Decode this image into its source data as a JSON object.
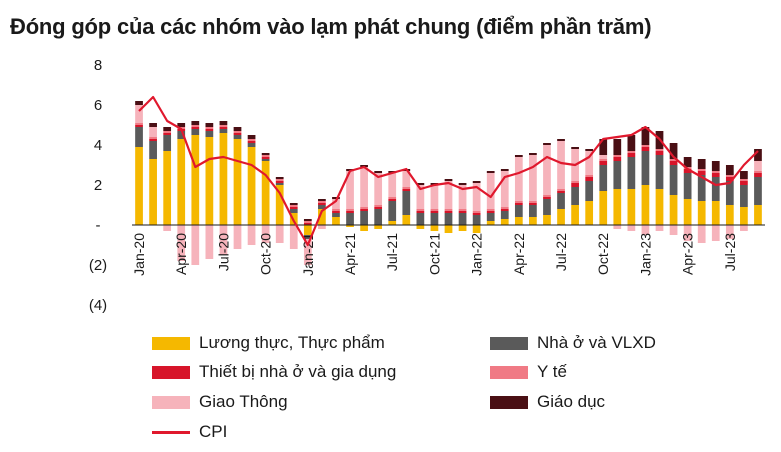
{
  "title": "Đóng góp của các nhóm vào lạm phát chung (điểm phần trăm)",
  "chart_data": {
    "type": "bar",
    "stacked": true,
    "overlay_line": "CPI",
    "categories": [
      "Jan-20",
      "Feb-20",
      "Mar-20",
      "Apr-20",
      "May-20",
      "Jun-20",
      "Jul-20",
      "Aug-20",
      "Sep-20",
      "Oct-20",
      "Nov-20",
      "Dec-20",
      "Jan-21",
      "Feb-21",
      "Mar-21",
      "Apr-21",
      "May-21",
      "Jun-21",
      "Jul-21",
      "Aug-21",
      "Sep-21",
      "Oct-21",
      "Nov-21",
      "Dec-21",
      "Jan-22",
      "Feb-22",
      "Mar-22",
      "Apr-22",
      "May-22",
      "Jun-22",
      "Jul-22",
      "Aug-22",
      "Sep-22",
      "Oct-22",
      "Nov-22",
      "Dec-22",
      "Jan-23",
      "Feb-23",
      "Mar-23",
      "Apr-23",
      "May-23",
      "Jun-23",
      "Jul-23",
      "Aug-23",
      "Sep-23"
    ],
    "tick_labels": [
      "Jan-20",
      "Apr-20",
      "Jul-20",
      "Oct-20",
      "Jan-21",
      "Apr-21",
      "Jul-21",
      "Oct-21",
      "Jan-22",
      "Apr-22",
      "Jul-22",
      "Oct-22",
      "Jan-23",
      "Apr-23",
      "Jul-23"
    ],
    "y_tick_labels": [
      "(4)",
      "(2)",
      "-",
      "2",
      "4",
      "6",
      "8"
    ],
    "ylim": [
      -4,
      8
    ],
    "y_ticks": [
      -4,
      -2,
      0,
      2,
      4,
      6,
      8
    ],
    "series": [
      {
        "name": "Lương thực, Thực phẩm",
        "color": "#f5b800",
        "values": [
          3.9,
          3.3,
          3.7,
          4.3,
          4.5,
          4.4,
          4.6,
          4.3,
          3.9,
          3.2,
          2.0,
          0.6,
          -0.5,
          0.8,
          0.4,
          -0.1,
          -0.3,
          -0.2,
          0.2,
          0.5,
          -0.2,
          -0.3,
          -0.4,
          -0.3,
          -0.4,
          0.2,
          0.3,
          0.4,
          0.4,
          0.5,
          0.8,
          1.0,
          1.2,
          1.7,
          1.8,
          1.8,
          2.0,
          1.8,
          1.5,
          1.3,
          1.2,
          1.2,
          1.0,
          0.9,
          1.0
        ]
      },
      {
        "name": "Nhà ở và VLXD",
        "color": "#5a5a5a",
        "values": [
          1.0,
          0.9,
          0.8,
          0.4,
          0.3,
          0.3,
          0.2,
          0.2,
          0.2,
          0.1,
          0.1,
          0.2,
          -0.2,
          0.2,
          0.2,
          0.6,
          0.7,
          0.8,
          1.0,
          1.2,
          0.6,
          0.6,
          0.6,
          0.6,
          0.5,
          0.4,
          0.4,
          0.6,
          0.6,
          0.8,
          0.8,
          0.9,
          1.0,
          1.3,
          1.4,
          1.6,
          1.7,
          1.7,
          1.5,
          1.3,
          1.3,
          1.2,
          1.2,
          1.1,
          1.4
        ]
      },
      {
        "name": "Thiết bị nhà ở và gia dụng",
        "color": "#d7152a",
        "values": [
          0.1,
          0.1,
          0.1,
          0.1,
          0.1,
          0.1,
          0.1,
          0.1,
          0.1,
          0.1,
          0.1,
          0.1,
          0.1,
          0.1,
          0.1,
          0.1,
          0.1,
          0.1,
          0.1,
          0.1,
          0.1,
          0.1,
          0.1,
          0.1,
          0.1,
          0.1,
          0.1,
          0.1,
          0.1,
          0.1,
          0.1,
          0.2,
          0.2,
          0.2,
          0.2,
          0.2,
          0.2,
          0.2,
          0.2,
          0.2,
          0.2,
          0.2,
          0.2,
          0.2,
          0.2
        ]
      },
      {
        "name": "Y tế",
        "color": "#f07a85",
        "values": [
          0.1,
          0.1,
          0.1,
          0.1,
          0.1,
          0.1,
          0.1,
          0.1,
          0.1,
          0.1,
          0.1,
          0.1,
          0.1,
          0.1,
          0.1,
          0.1,
          0.1,
          0.1,
          0.1,
          0.1,
          0.1,
          0.1,
          0.1,
          0.1,
          0.1,
          0.1,
          0.1,
          0.1,
          0.1,
          0.1,
          0.1,
          0.1,
          0.1,
          0.1,
          0.1,
          0.1,
          0.1,
          0.1,
          0.1,
          0.1,
          0.1,
          0.1,
          0.1,
          0.1,
          0.1
        ]
      },
      {
        "name": "Giao Thông",
        "color": "#f6b3bb",
        "values": [
          0.9,
          0.5,
          -0.3,
          -1.8,
          -2.0,
          -1.7,
          -1.5,
          -1.2,
          -1.0,
          -0.9,
          -0.9,
          -1.2,
          -1.3,
          -0.2,
          0.5,
          1.9,
          2.0,
          1.6,
          1.2,
          0.8,
          1.2,
          1.2,
          1.4,
          1.2,
          1.4,
          1.8,
          1.8,
          2.2,
          2.3,
          2.5,
          2.4,
          1.6,
          1.2,
          0.2,
          -0.2,
          -0.3,
          -0.5,
          -0.3,
          -0.5,
          -0.8,
          -0.9,
          -0.8,
          -0.7,
          -0.3,
          0.5
        ]
      },
      {
        "name": "Giáo dục",
        "color": "#4a0f14",
        "values": [
          0.2,
          0.2,
          0.2,
          0.2,
          0.2,
          0.2,
          0.2,
          0.2,
          0.2,
          0.1,
          0.1,
          0.1,
          0.1,
          0.1,
          0.1,
          0.1,
          0.1,
          0.1,
          0.1,
          0.1,
          0.1,
          0.1,
          0.1,
          0.1,
          0.1,
          0.1,
          0.1,
          0.1,
          0.1,
          0.1,
          0.1,
          0.1,
          0.1,
          0.8,
          0.8,
          0.8,
          0.9,
          0.9,
          0.8,
          0.5,
          0.5,
          0.5,
          0.5,
          0.4,
          0.6
        ]
      }
    ],
    "line": {
      "name": "CPI",
      "color": "#e0182d",
      "values": [
        5.7,
        6.4,
        5.2,
        4.8,
        2.9,
        3.3,
        3.4,
        3.2,
        3.0,
        2.5,
        1.6,
        0.2,
        -1.0,
        0.7,
        1.2,
        2.7,
        2.9,
        2.4,
        2.6,
        2.8,
        1.8,
        2.0,
        2.1,
        1.8,
        1.9,
        1.4,
        2.4,
        2.6,
        2.9,
        3.4,
        3.1,
        3.0,
        3.4,
        4.3,
        4.4,
        4.5,
        4.9,
        4.3,
        3.4,
        2.8,
        2.4,
        2.0,
        2.1,
        3.0,
        3.7
      ]
    },
    "xlabel": "",
    "ylabel": "",
    "grid": false,
    "legend_position": "bottom"
  },
  "legend": {
    "items": [
      {
        "label": "Lương thực, Thực phẩm",
        "color": "#f5b800",
        "kind": "box"
      },
      {
        "label": "Nhà ở và VLXD",
        "color": "#5a5a5a",
        "kind": "box"
      },
      {
        "label": "Thiết bị nhà ở và gia dụng",
        "color": "#d7152a",
        "kind": "box"
      },
      {
        "label": "Y tế",
        "color": "#f07a85",
        "kind": "box"
      },
      {
        "label": "Giao Thông",
        "color": "#f6b3bb",
        "kind": "box"
      },
      {
        "label": "Giáo dục",
        "color": "#4a0f14",
        "kind": "box"
      },
      {
        "label": "CPI",
        "color": "#e0182d",
        "kind": "line"
      }
    ]
  }
}
